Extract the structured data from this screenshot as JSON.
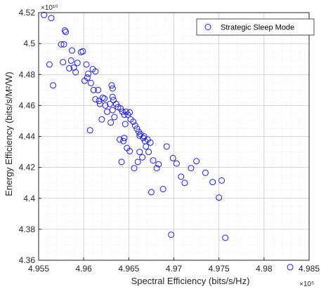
{
  "chart_data": {
    "type": "scatter",
    "xlabel": "Spectral Efficiency (bits/s/Hz)",
    "ylabel": "Energy Efficiency (bits/s/M²/W)",
    "x_exponent_label": "×10⁵",
    "y_exponent_label": "×10¹⁰",
    "xlim": [
      4.955,
      4.985
    ],
    "ylim": [
      4.36,
      4.52
    ],
    "x_ticks": [
      "4.955",
      "4.96",
      "4.965",
      "4.97",
      "4.975",
      "4.98",
      "4.985"
    ],
    "y_ticks": [
      "4.36",
      "4.38",
      "4.4",
      "4.42",
      "4.44",
      "4.46",
      "4.48",
      "4.5",
      "4.52"
    ],
    "grid": true,
    "minor_grid": true,
    "legend_position": "top-right",
    "colors": {
      "marker": "#1f1fd6",
      "grid": "#d9d9d9",
      "axes": "#262626"
    },
    "series": [
      {
        "name": "Strategic Sleep Mode",
        "marker": "circle",
        "points": [
          [
            4.9556,
            4.5185
          ],
          [
            4.9564,
            4.5165
          ],
          [
            4.9579,
            4.5085
          ],
          [
            4.958,
            4.5075
          ],
          [
            4.9578,
            4.4995
          ],
          [
            4.9575,
            4.4995
          ],
          [
            4.9562,
            4.4865
          ],
          [
            4.9577,
            4.488
          ],
          [
            4.9566,
            4.473
          ],
          [
            4.9587,
            4.4955
          ],
          [
            4.9586,
            4.489
          ],
          [
            4.9584,
            4.484
          ],
          [
            4.9589,
            4.4845
          ],
          [
            4.9591,
            4.4815
          ],
          [
            4.9593,
            4.4875
          ],
          [
            4.9597,
            4.4945
          ],
          [
            4.9599,
            4.495
          ],
          [
            4.9603,
            4.4865
          ],
          [
            4.9601,
            4.476
          ],
          [
            4.9604,
            4.478
          ],
          [
            4.9605,
            4.4805
          ],
          [
            4.961,
            4.4835
          ],
          [
            4.9613,
            4.482
          ],
          [
            4.9608,
            4.4745
          ],
          [
            4.9611,
            4.47
          ],
          [
            4.9616,
            4.47
          ],
          [
            4.9613,
            4.464
          ],
          [
            4.9617,
            4.463
          ],
          [
            4.9618,
            4.461
          ],
          [
            4.9621,
            4.465
          ],
          [
            4.9623,
            4.4645
          ],
          [
            4.9624,
            4.46
          ],
          [
            4.9626,
            4.456
          ],
          [
            4.9629,
            4.461
          ],
          [
            4.9631,
            4.473
          ],
          [
            4.9632,
            4.471
          ],
          [
            4.9632,
            4.4655
          ],
          [
            4.9633,
            4.4635
          ],
          [
            4.9632,
            4.457
          ],
          [
            4.9634,
            4.4525
          ],
          [
            4.9636,
            4.461
          ],
          [
            4.9638,
            4.459
          ],
          [
            4.9641,
            4.458
          ],
          [
            4.9643,
            4.456
          ],
          [
            4.9645,
            4.454
          ],
          [
            4.9646,
            4.448
          ],
          [
            4.9647,
            4.456
          ],
          [
            4.9649,
            4.454
          ],
          [
            4.9651,
            4.4555
          ],
          [
            4.9652,
            4.451
          ],
          [
            4.9655,
            4.4495
          ],
          [
            4.9657,
            4.447
          ],
          [
            4.9659,
            4.445
          ],
          [
            4.9661,
            4.443
          ],
          [
            4.9663,
            4.4415
          ],
          [
            4.9666,
            4.439
          ],
          [
            4.9668,
            4.437
          ],
          [
            4.9671,
            4.438
          ],
          [
            4.9674,
            4.436
          ],
          [
            4.9667,
            4.44
          ],
          [
            4.9644,
            4.437
          ],
          [
            4.9645,
            4.439
          ],
          [
            4.9648,
            4.4325
          ],
          [
            4.9651,
            4.4305
          ],
          [
            4.9656,
            4.4195
          ],
          [
            4.966,
            4.4235
          ],
          [
            4.9665,
            4.4265
          ],
          [
            4.9662,
            4.43
          ],
          [
            4.9669,
            4.4335
          ],
          [
            4.9672,
            4.43
          ],
          [
            4.9677,
            4.4245
          ],
          [
            4.9683,
            4.422
          ],
          [
            4.9681,
            4.4195
          ],
          [
            4.9692,
            4.4335
          ],
          [
            4.9699,
            4.426
          ],
          [
            4.9703,
            4.4225
          ],
          [
            4.9708,
            4.414
          ],
          [
            4.9712,
            4.41
          ],
          [
            4.9719,
            4.4195
          ],
          [
            4.9725,
            4.424
          ],
          [
            4.9735,
            4.4165
          ],
          [
            4.9743,
            4.4105
          ],
          [
            4.9753,
            4.4115
          ],
          [
            4.975,
            4.4005
          ],
          [
            4.9688,
            4.406
          ],
          [
            4.9675,
            4.404
          ],
          [
            4.9697,
            4.3765
          ],
          [
            4.9757,
            4.3745
          ],
          [
            4.9829,
            4.3555
          ],
          [
            4.9607,
            4.444
          ],
          [
            4.963,
            4.449
          ],
          [
            4.964,
            4.438
          ],
          [
            4.962,
            4.451
          ],
          [
            4.9642,
            4.4235
          ],
          [
            4.9662,
            4.4405
          ]
        ]
      }
    ]
  }
}
